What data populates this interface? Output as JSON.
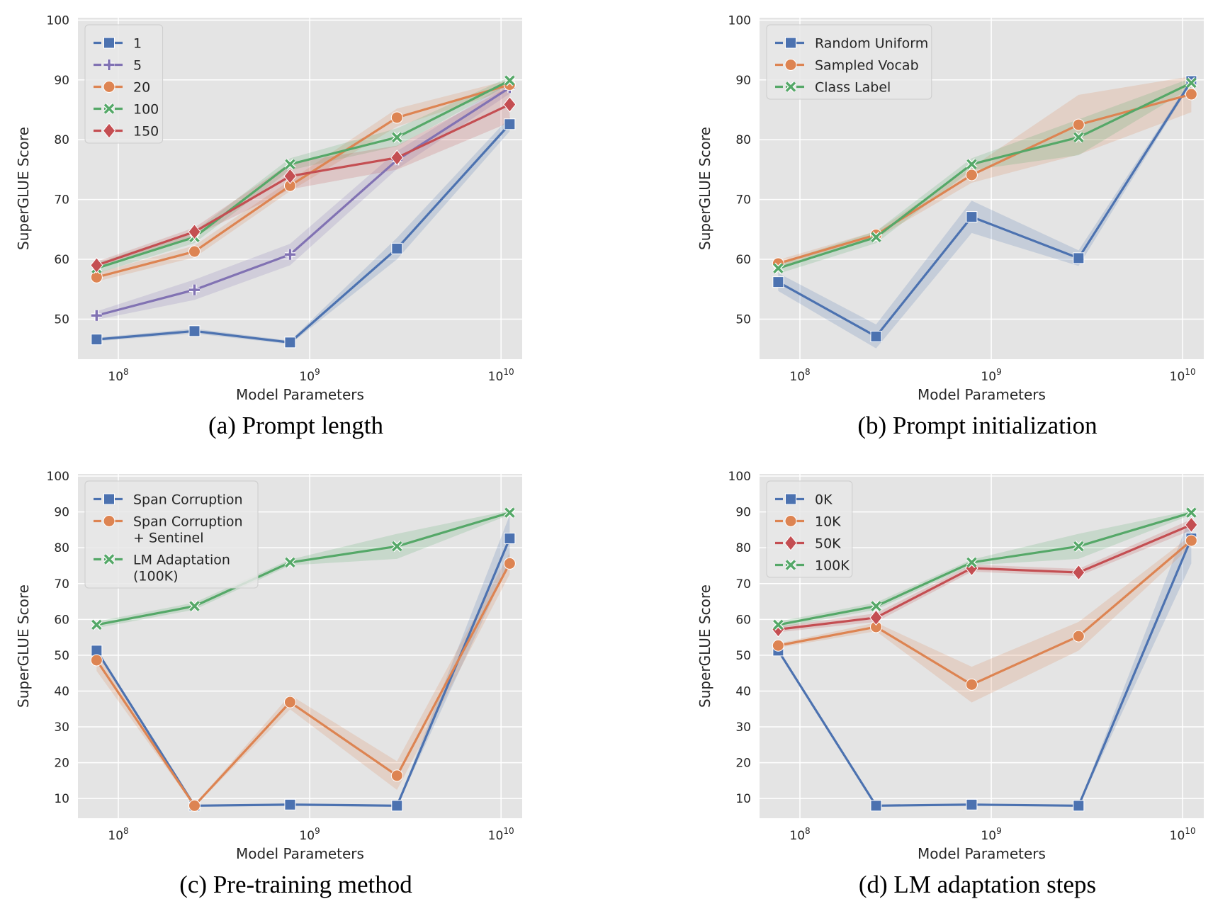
{
  "colors": {
    "blue": "#4c72b0",
    "purple": "#8172b3",
    "orange": "#dd8452",
    "green": "#55a868",
    "red": "#c44e52",
    "background": "#e4e4e4",
    "grid": "#ffffff"
  },
  "chart_data": [
    {
      "type": "line",
      "caption": "(a) Prompt length",
      "xlabel": "Model Parameters",
      "ylabel": "SuperGLUE Score",
      "xscale": "log",
      "xlim": [
        61500000.0,
        12900000000.0
      ],
      "ylim": [
        43.3,
        100.4
      ],
      "xticks": [
        100000000.0,
        1000000000.0,
        10000000000.0
      ],
      "xtick_labels": [
        "10^8",
        "10^9",
        "10^10"
      ],
      "yticks": [
        50,
        60,
        70,
        80,
        90,
        100
      ],
      "grid": true,
      "legend": "top-left",
      "x": [
        77000000.0,
        250000000.0,
        790000000.0,
        2860000000.0,
        11100000000.0
      ],
      "series": [
        {
          "name": "1",
          "color": "#4c72b0",
          "marker": "square",
          "values": [
            46.6,
            48.0,
            46.1,
            61.8,
            82.6
          ],
          "ci": [
            0.3,
            0.4,
            0.3,
            1.8,
            1.2
          ]
        },
        {
          "name": "5",
          "color": "#8172b3",
          "marker": "plus",
          "values": [
            50.6,
            54.9,
            60.8,
            76.6,
            88.7
          ],
          "ci": [
            0.7,
            1.7,
            1.8,
            1.5,
            1.0
          ]
        },
        {
          "name": "20",
          "color": "#dd8452",
          "marker": "circle",
          "values": [
            57.0,
            61.3,
            72.3,
            83.7,
            89.2
          ],
          "ci": [
            0.7,
            1.0,
            0.9,
            1.5,
            0.8
          ]
        },
        {
          "name": "100",
          "color": "#55a868",
          "marker": "x",
          "values": [
            58.5,
            63.7,
            75.9,
            80.4,
            89.9
          ],
          "ci": [
            0.9,
            1.0,
            1.0,
            1.5,
            0.6
          ]
        },
        {
          "name": "150",
          "color": "#c44e52",
          "marker": "diamond",
          "values": [
            59.0,
            64.6,
            73.9,
            77.0,
            85.9
          ],
          "ci": [
            0.6,
            0.7,
            2.2,
            2.0,
            3.0
          ]
        }
      ]
    },
    {
      "type": "line",
      "caption": "(b) Prompt initialization",
      "xlabel": "Model Parameters",
      "ylabel": "SuperGLUE Score",
      "xscale": "log",
      "xlim": [
        61500000.0,
        12900000000.0
      ],
      "ylim": [
        43.3,
        100.4
      ],
      "xticks": [
        100000000.0,
        1000000000.0,
        10000000000.0
      ],
      "xtick_labels": [
        "10^8",
        "10^9",
        "10^10"
      ],
      "yticks": [
        50,
        60,
        70,
        80,
        90,
        100
      ],
      "grid": true,
      "legend": "top-left",
      "x": [
        77000000.0,
        250000000.0,
        790000000.0,
        2860000000.0,
        11100000000.0
      ],
      "series": [
        {
          "name": "Random Uniform",
          "color": "#4c72b0",
          "marker": "square",
          "values": [
            56.2,
            47.1,
            67.1,
            60.2,
            89.8
          ],
          "ci": [
            1.5,
            2.0,
            2.7,
            1.3,
            0.4
          ]
        },
        {
          "name": "Sampled Vocab",
          "color": "#dd8452",
          "marker": "circle",
          "values": [
            59.3,
            64.1,
            74.1,
            82.5,
            87.6
          ],
          "ci": [
            0.6,
            0.6,
            1.3,
            5.0,
            3.0
          ]
        },
        {
          "name": "Class Label",
          "color": "#55a868",
          "marker": "x",
          "values": [
            58.5,
            63.7,
            75.9,
            80.4,
            89.5
          ],
          "ci": [
            0.9,
            1.0,
            1.0,
            3.0,
            0.8
          ]
        }
      ]
    },
    {
      "type": "line",
      "caption": "(c) Pre-training method",
      "xlabel": "Model Parameters",
      "ylabel": "SuperGLUE Score",
      "xscale": "log",
      "xlim": [
        61500000.0,
        12900000000.0
      ],
      "ylim": [
        4.5,
        100.6
      ],
      "xticks": [
        100000000.0,
        1000000000.0,
        10000000000.0
      ],
      "xtick_labels": [
        "10^8",
        "10^9",
        "10^10"
      ],
      "yticks": [
        10,
        20,
        30,
        40,
        50,
        60,
        70,
        80,
        90,
        100
      ],
      "grid": true,
      "legend": "top-left",
      "x": [
        77000000.0,
        250000000.0,
        790000000.0,
        2860000000.0,
        11100000000.0
      ],
      "series": [
        {
          "name": "Span Corruption",
          "color": "#4c72b0",
          "marker": "square",
          "values": [
            51.3,
            8.0,
            8.3,
            8.0,
            82.6
          ],
          "ci": [
            0.5,
            0.2,
            0.2,
            0.2,
            6.5
          ]
        },
        {
          "name": "Span Corruption\n+ Sentinel",
          "color": "#dd8452",
          "marker": "circle",
          "values": [
            48.6,
            8.0,
            36.9,
            16.4,
            75.6
          ],
          "ci": [
            3.0,
            0.3,
            2.0,
            4.0,
            3.0
          ]
        },
        {
          "name": "LM Adaptation\n(100K)",
          "color": "#55a868",
          "marker": "x",
          "values": [
            58.5,
            63.7,
            75.9,
            80.4,
            89.8
          ],
          "ci": [
            0.9,
            1.0,
            0.8,
            3.5,
            0.6
          ]
        }
      ]
    },
    {
      "type": "line",
      "caption": "(d) LM adaptation steps",
      "xlabel": "Model Parameters",
      "ylabel": "SuperGLUE Score",
      "xscale": "log",
      "xlim": [
        61500000.0,
        12900000000.0
      ],
      "ylim": [
        4.5,
        100.6
      ],
      "xticks": [
        100000000.0,
        1000000000.0,
        10000000000.0
      ],
      "xtick_labels": [
        "10^8",
        "10^9",
        "10^10"
      ],
      "yticks": [
        10,
        20,
        30,
        40,
        50,
        60,
        70,
        80,
        90,
        100
      ],
      "grid": true,
      "legend": "top-left",
      "x": [
        77000000.0,
        250000000.0,
        790000000.0,
        2860000000.0,
        11100000000.0
      ],
      "series": [
        {
          "name": "0K",
          "color": "#4c72b0",
          "marker": "square",
          "values": [
            51.3,
            8.0,
            8.3,
            8.0,
            82.6
          ],
          "ci": [
            0.5,
            0.2,
            0.2,
            0.2,
            7.0
          ]
        },
        {
          "name": "10K",
          "color": "#dd8452",
          "marker": "circle",
          "values": [
            52.7,
            57.9,
            41.8,
            55.3,
            82.0
          ],
          "ci": [
            0.6,
            1.2,
            5.0,
            4.0,
            1.5
          ]
        },
        {
          "name": "50K",
          "color": "#c44e52",
          "marker": "diamond",
          "values": [
            57.2,
            60.5,
            74.3,
            73.1,
            86.4
          ],
          "ci": [
            0.8,
            1.2,
            1.0,
            1.0,
            1.5
          ]
        },
        {
          "name": "100K",
          "color": "#55a868",
          "marker": "x",
          "values": [
            58.5,
            63.7,
            75.9,
            80.4,
            89.8
          ],
          "ci": [
            0.9,
            1.0,
            0.8,
            3.5,
            0.6
          ]
        }
      ]
    }
  ]
}
